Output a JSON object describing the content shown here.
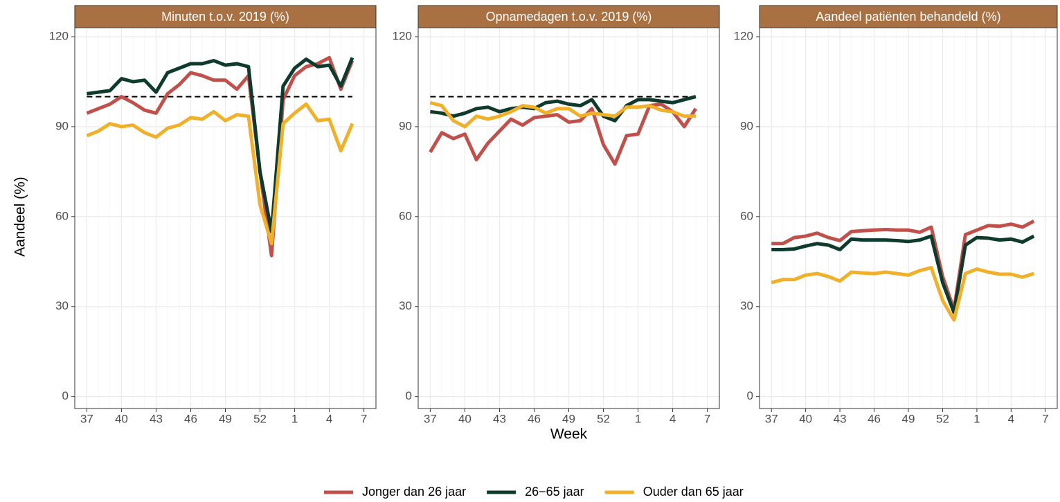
{
  "chart_data": [
    {
      "type": "line",
      "title": "Minuten t.o.v. 2019 (%)",
      "ylabel": "Aandeel (%)",
      "categories": [
        "37",
        null,
        null,
        "40",
        null,
        null,
        "43",
        null,
        null,
        "46",
        null,
        null,
        "49",
        null,
        null,
        "52",
        null,
        null,
        "1",
        null,
        null,
        "4",
        null,
        null,
        "7"
      ],
      "ylim": [
        -4,
        123
      ],
      "yticks": [
        0,
        30,
        60,
        90,
        120
      ],
      "grid": true,
      "hline": 100,
      "series": [
        {
          "name": "Jonger dan 26 jaar",
          "color": "#c1504a",
          "values": [
            94.5,
            96,
            97.5,
            100,
            98,
            95.5,
            94.5,
            101,
            104,
            108,
            107,
            105.5,
            105.5,
            102.5,
            107,
            75,
            47,
            99,
            107,
            110,
            111,
            113,
            102.5,
            112,
            null
          ]
        },
        {
          "name": "26−65 jaar",
          "color": "#0f3b2e",
          "values": [
            101,
            101.5,
            102,
            106,
            105,
            105.5,
            101.5,
            108,
            109.5,
            111,
            111,
            112,
            110.5,
            111,
            110,
            75,
            55,
            103.5,
            109.5,
            112.5,
            110,
            110.5,
            103.5,
            113,
            null
          ]
        },
        {
          "name": "Ouder dan 65 jaar",
          "color": "#f0b02a",
          "values": [
            87,
            88.5,
            91,
            90,
            90.5,
            88,
            86.5,
            89.5,
            90.5,
            93,
            92.5,
            95,
            92,
            94,
            93.5,
            64,
            51,
            91,
            94.5,
            97.5,
            92,
            92.5,
            82,
            91,
            null
          ]
        }
      ]
    },
    {
      "type": "line",
      "title": "Opnamedagen t.o.v. 2019 (%)",
      "xlabel": "Week",
      "categories": [
        "37",
        null,
        null,
        "40",
        null,
        null,
        "43",
        null,
        null,
        "46",
        null,
        null,
        "49",
        null,
        null,
        "52",
        null,
        null,
        "1",
        null,
        null,
        "4",
        null,
        null,
        "7"
      ],
      "ylim": [
        -4,
        123
      ],
      "yticks": [
        0,
        30,
        60,
        90,
        120
      ],
      "grid": true,
      "hline": 100,
      "series": [
        {
          "name": "Jonger dan 26 jaar",
          "color": "#c1504a",
          "values": [
            81.5,
            88,
            86,
            87.5,
            79,
            84.5,
            88.5,
            92.5,
            90.5,
            93,
            93.5,
            94,
            91.5,
            92,
            96,
            84,
            77.5,
            87,
            87.5,
            97,
            97.5,
            95,
            90,
            96,
            null
          ]
        },
        {
          "name": "26−65 jaar",
          "color": "#0f3b2e",
          "values": [
            95,
            94.5,
            93.5,
            94.5,
            96,
            96.5,
            95,
            96,
            96.5,
            96,
            98,
            98.5,
            97.5,
            97,
            99,
            93.5,
            92,
            97,
            99,
            99,
            98.5,
            98,
            99,
            100,
            null
          ]
        },
        {
          "name": "Ouder dan 65 jaar",
          "color": "#f0b02a",
          "values": [
            98,
            97,
            92,
            90,
            93.5,
            92.5,
            93.5,
            95,
            97,
            96.5,
            94.5,
            96,
            96,
            93.5,
            94.5,
            94,
            93.5,
            96.5,
            96.5,
            97,
            95.5,
            95,
            93.5,
            93.5,
            null
          ]
        }
      ]
    },
    {
      "type": "line",
      "title": "Aandeel patiënten behandeld (%)",
      "categories": [
        "37",
        null,
        null,
        "40",
        null,
        null,
        "43",
        null,
        null,
        "46",
        null,
        null,
        "49",
        null,
        null,
        "52",
        null,
        null,
        "1",
        null,
        null,
        "4",
        null,
        null,
        "7"
      ],
      "ylim": [
        -4,
        123
      ],
      "yticks": [
        0,
        30,
        60,
        90,
        120
      ],
      "grid": true,
      "series": [
        {
          "name": "Jonger dan 26 jaar",
          "color": "#c1504a",
          "values": [
            51,
            51,
            53,
            53.5,
            54.5,
            53,
            52,
            55,
            55.3,
            55.5,
            55.7,
            55.5,
            55.5,
            54.8,
            56.5,
            40,
            29,
            54,
            55.5,
            57,
            56.8,
            57.5,
            56.5,
            58.5,
            null
          ]
        },
        {
          "name": "26−65 jaar",
          "color": "#0f3b2e",
          "values": [
            49,
            49,
            49.2,
            50.2,
            51,
            50.5,
            49,
            52.5,
            52.2,
            52.2,
            52.2,
            52,
            51.7,
            52.2,
            53.5,
            38,
            28,
            50.5,
            53,
            52.8,
            52.2,
            52.5,
            51.5,
            53.5,
            null
          ]
        },
        {
          "name": "Ouder dan 65 jaar",
          "color": "#f0b02a",
          "values": [
            38,
            39,
            39,
            40.5,
            41,
            40,
            38.5,
            41.5,
            41.2,
            41,
            41.5,
            41,
            40.5,
            42,
            43,
            32,
            25.5,
            41,
            42.5,
            41.5,
            40.8,
            40.8,
            39.8,
            41,
            null
          ]
        }
      ]
    }
  ]
}
